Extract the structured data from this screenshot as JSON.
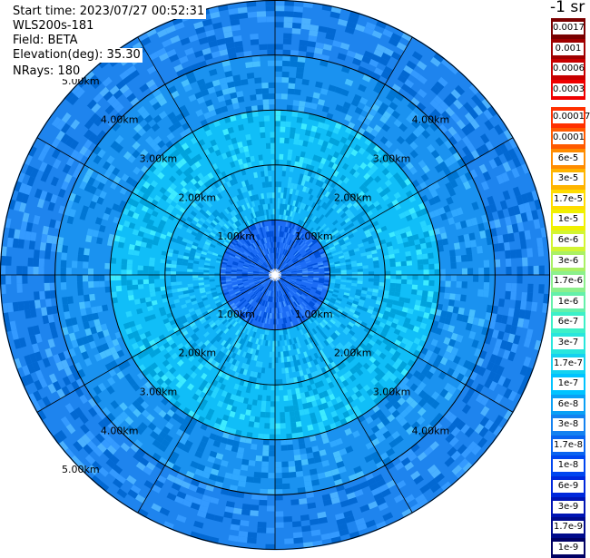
{
  "header": {
    "start_time": "Start time: 2023/07/27 00:52:31",
    "instrument": "WLS200s-181",
    "field": "Field: BETA",
    "elevation": "Elevation(deg): 35.30",
    "nrays": "NRays: 180"
  },
  "colorbar": {
    "unit_label": "-1 sr",
    "upper_block": [
      {
        "label": "0.0017",
        "color": "#7a0000"
      },
      {
        "label": "0.001",
        "color": "#a00000"
      },
      {
        "label": "0.0006",
        "color": "#c80000"
      },
      {
        "label": "0.0003",
        "color": "#f00000"
      }
    ],
    "lower_block": [
      {
        "label": "0.00017",
        "color": "#ff3000"
      },
      {
        "label": "0.0001",
        "color": "#ff5a00"
      },
      {
        "label": "6e-5",
        "color": "#ff8c00"
      },
      {
        "label": "3e-5",
        "color": "#ffb400"
      },
      {
        "label": "1.7e-5",
        "color": "#ffdc00"
      },
      {
        "label": "1e-5",
        "color": "#f0f000"
      },
      {
        "label": "6e-6",
        "color": "#d2f532"
      },
      {
        "label": "3e-6",
        "color": "#aaf064"
      },
      {
        "label": "1.7e-6",
        "color": "#8cf08c"
      },
      {
        "label": "1e-6",
        "color": "#64f0aa"
      },
      {
        "label": "6e-7",
        "color": "#3cf0c8"
      },
      {
        "label": "3e-7",
        "color": "#28e6dc"
      },
      {
        "label": "1.7e-7",
        "color": "#14d2f0"
      },
      {
        "label": "1e-7",
        "color": "#00c3ff"
      },
      {
        "label": "6e-8",
        "color": "#0aa0f5"
      },
      {
        "label": "3e-8",
        "color": "#1482f0"
      },
      {
        "label": "1.7e-8",
        "color": "#0a64f0"
      },
      {
        "label": "1e-8",
        "color": "#0046f0"
      },
      {
        "label": "6e-9",
        "color": "#0028dc"
      },
      {
        "label": "3e-9",
        "color": "#0014b4"
      },
      {
        "label": "1.7e-9",
        "color": "#000a8c"
      },
      {
        "label": "1e-9",
        "color": "#000064"
      }
    ]
  },
  "chart_data": {
    "type": "heatmap",
    "projection": "polar (PPI scan)",
    "field": "BETA",
    "range_ring_labels": [
      "1.00km",
      "2.00km",
      "3.00km",
      "4.00km",
      "5.00km"
    ],
    "range_rings_km": [
      1,
      2,
      3,
      4,
      5
    ],
    "max_range_km": 5.0,
    "n_rays": 180,
    "spoke_spacing_deg": 30,
    "value_regions": [
      {
        "range_km": [
          0,
          1.0
        ],
        "dominant_class": "6e-8 to 1.7e-8",
        "color": "#1c6cf5"
      },
      {
        "range_km": [
          1.0,
          2.0
        ],
        "dominant_class": "1e-7 to 6e-8",
        "color": "#12b4f8"
      },
      {
        "range_km": [
          2.0,
          3.0
        ],
        "dominant_class": "1e-7",
        "color": "#10bef8"
      },
      {
        "range_km": [
          3.0,
          4.0
        ],
        "dominant_class": "6e-8 to 1.7e-8",
        "color": "#1a92f0"
      },
      {
        "range_km": [
          4.0,
          5.0
        ],
        "dominant_class": "6e-8 to 1e-8",
        "color": "#1e84ee"
      }
    ],
    "grid": true
  }
}
